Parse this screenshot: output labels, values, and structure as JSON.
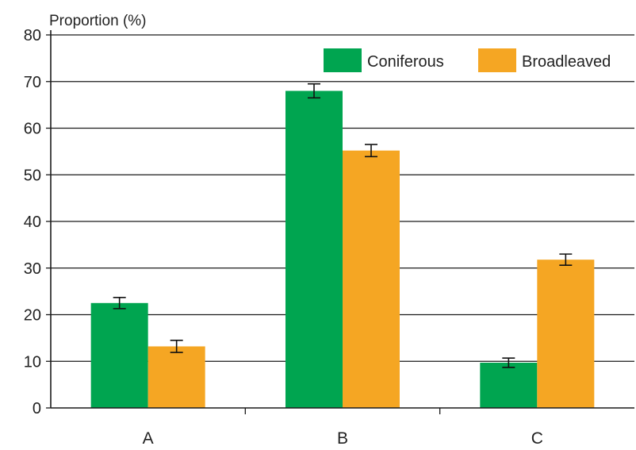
{
  "chart_data": {
    "type": "bar",
    "title": "",
    "xlabel": "",
    "ylabel": "Proportion (%)",
    "categories": [
      "A",
      "B",
      "C"
    ],
    "ylim": [
      0,
      80
    ],
    "yticks": [
      0,
      10,
      20,
      30,
      40,
      50,
      60,
      70,
      80
    ],
    "grid": true,
    "legend_position": "top-right",
    "series": [
      {
        "name": "Coniferous",
        "color": "#00a550",
        "values": [
          22.5,
          68,
          9.7
        ],
        "errors": [
          1.2,
          1.5,
          1.0
        ]
      },
      {
        "name": "Broadleaved",
        "color": "#f5a623",
        "values": [
          13.2,
          55.2,
          31.8
        ],
        "errors": [
          1.3,
          1.3,
          1.2
        ]
      }
    ]
  }
}
